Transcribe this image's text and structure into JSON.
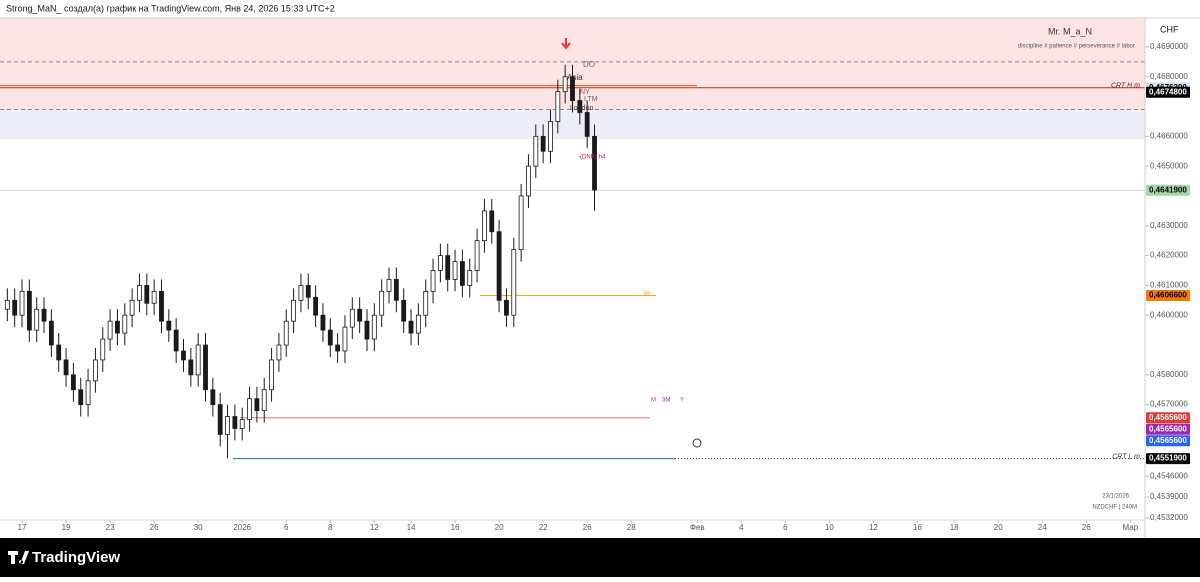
{
  "header": {
    "text": "Strong_MaN_ создал(а) график на TradingView.com, Янв 24, 2026 15:33 UTC+2"
  },
  "footer": {
    "brand": "TradingView"
  },
  "chart_data": {
    "type": "candlestick",
    "symbol_info": "NZDCHF | 240M",
    "date_stamp": "23/1/2026",
    "currency": "CHF",
    "author": "Mr. M_a_N",
    "motto": "discipline # patience # perseverance # labor",
    "annotations": [
      "DO",
      "Asia",
      "NY",
      "LTM",
      "London",
      "-(DNR) h4"
    ],
    "xlim": [
      -1,
      155
    ],
    "xticks": [
      {
        "value": 2,
        "label": "17"
      },
      {
        "value": 8,
        "label": "19"
      },
      {
        "value": 14,
        "label": "23"
      },
      {
        "value": 20,
        "label": "26"
      },
      {
        "value": 26,
        "label": "30"
      },
      {
        "value": 32,
        "label": "2026"
      },
      {
        "value": 38,
        "label": "6"
      },
      {
        "value": 44,
        "label": "8"
      },
      {
        "value": 50,
        "label": "12"
      },
      {
        "value": 55,
        "label": "14"
      },
      {
        "value": 61,
        "label": "16"
      },
      {
        "value": 67,
        "label": "20"
      },
      {
        "value": 73,
        "label": "22"
      },
      {
        "value": 79,
        "label": "26"
      },
      {
        "value": 85,
        "label": "28"
      },
      {
        "value": 94,
        "label": "Фев"
      },
      {
        "value": 100,
        "label": "4"
      },
      {
        "value": 106,
        "label": "6"
      },
      {
        "value": 112,
        "label": "10"
      },
      {
        "value": 118,
        "label": "12"
      },
      {
        "value": 124,
        "label": "16"
      },
      {
        "value": 129,
        "label": "18"
      },
      {
        "value": 135,
        "label": "20"
      },
      {
        "value": 141,
        "label": "24"
      },
      {
        "value": 147,
        "label": "26"
      },
      {
        "value": 153,
        "label": "Мар"
      }
    ],
    "ylim": [
      0.45313,
      0.46997
    ],
    "yticks": [
      {
        "value": 0.469,
        "label": "0,4690000"
      },
      {
        "value": 0.468,
        "label": "0,4680000"
      },
      {
        "value": 0.466,
        "label": "0,4660000"
      },
      {
        "value": 0.465,
        "label": "0,4650000"
      },
      {
        "value": 0.463,
        "label": "0,4630000"
      },
      {
        "value": 0.462,
        "label": "0,4620000"
      },
      {
        "value": 0.461,
        "label": "0,4610000"
      },
      {
        "value": 0.46,
        "label": "0,4600000"
      },
      {
        "value": 0.458,
        "label": "0,4580000"
      },
      {
        "value": 0.457,
        "label": "0,4570000"
      },
      {
        "value": 0.4546,
        "label": "0,4546000"
      },
      {
        "value": 0.4539,
        "label": "0,4539000"
      },
      {
        "value": 0.4532,
        "label": "0,4532000"
      }
    ],
    "zones": [
      {
        "from": 0.46997,
        "to": 0.4669,
        "color": "#fde4e4"
      },
      {
        "from": 0.4669,
        "to": 0.4659,
        "color": "#eeeef9"
      }
    ],
    "levels": [
      {
        "value": 0.4685,
        "color": "#888888",
        "dashed": true
      },
      {
        "value": 0.4677,
        "color": "#e65100",
        "dashed": false
      },
      {
        "value": 0.46763,
        "color": "#c62828",
        "dashed": false,
        "label": "CRT H m"
      },
      {
        "value": 0.4669,
        "color": "#888888",
        "dashed": true
      },
      {
        "value": 0.46419,
        "color": "#c8e6c9",
        "dashed": false
      },
      {
        "value": 0.46066,
        "color": "#f5a623",
        "dashed": false,
        "label": "W"
      },
      {
        "value": 0.45656,
        "color": "#e57373",
        "dashed": false
      },
      {
        "value": 0.45519,
        "color": "#1e63b8",
        "dashed": false,
        "label": "CRT L m"
      }
    ],
    "level_tags": [
      "M",
      "3M",
      "Y"
    ],
    "price_tags": [
      {
        "value": 0.46763,
        "label": "0,4676300",
        "color": "#cfe2f7",
        "text": "#000000"
      },
      {
        "value": 0.46748,
        "label": "0,4674800",
        "color": "#000000",
        "text": "#ffffff"
      },
      {
        "value": 0.46419,
        "label": "0,4641900",
        "color": "#a5d6a7",
        "text": "#000000"
      },
      {
        "value": 0.46066,
        "label": "0,4606600",
        "color": "#f57c00",
        "text": "#000000"
      },
      {
        "value": 0.45656,
        "label": "0,4565600",
        "color": "#e53935",
        "text": "#ffffff"
      },
      {
        "value": 0.45656,
        "label": "0,4565600",
        "color": "#9c27b0",
        "text": "#ffffff"
      },
      {
        "value": 0.45656,
        "label": "0,4565600",
        "color": "#2962ff",
        "text": "#ffffff"
      },
      {
        "value": 0.45519,
        "label": "0,4551900",
        "color": "#000000",
        "text": "#ffffff"
      }
    ],
    "up_color": "#ffffff",
    "down_color": "#1a1a1a",
    "wick_color": "#1a1a1a",
    "open": [
      0.4602,
      0.4605,
      0.46,
      0.4608,
      0.4595,
      0.4602,
      0.4598,
      0.459,
      0.4585,
      0.458,
      0.4575,
      0.457,
      0.4578,
      0.4585,
      0.4592,
      0.4598,
      0.4594,
      0.46,
      0.4605,
      0.461,
      0.4604,
      0.4608,
      0.4598,
      0.4595,
      0.4588,
      0.4585,
      0.458,
      0.459,
      0.4575,
      0.457,
      0.456,
      0.4566,
      0.4562,
      0.4565,
      0.4572,
      0.4568,
      0.4575,
      0.4585,
      0.459,
      0.4598,
      0.4605,
      0.461,
      0.4606,
      0.46,
      0.4595,
      0.459,
      0.4588,
      0.4596,
      0.4602,
      0.4598,
      0.4592,
      0.46,
      0.4608,
      0.4612,
      0.4605,
      0.4598,
      0.4594,
      0.46,
      0.4608,
      0.4615,
      0.462,
      0.4612,
      0.4618,
      0.461,
      0.4615,
      0.4625,
      0.4635,
      0.4628,
      0.4605,
      0.46,
      0.4622,
      0.464,
      0.465,
      0.466,
      0.4655,
      0.4665,
      0.4675,
      0.468,
      0.4672,
      0.4668,
      0.466
    ],
    "high": [
      0.4609,
      0.4609,
      0.4612,
      0.4612,
      0.4606,
      0.4606,
      0.4602,
      0.4594,
      0.4589,
      0.4584,
      0.4579,
      0.4582,
      0.4589,
      0.4596,
      0.4602,
      0.4602,
      0.4604,
      0.4609,
      0.4614,
      0.4614,
      0.4612,
      0.4612,
      0.4602,
      0.4599,
      0.4592,
      0.4589,
      0.4594,
      0.4594,
      0.4579,
      0.4574,
      0.457,
      0.457,
      0.4569,
      0.4576,
      0.4576,
      0.4579,
      0.4589,
      0.4594,
      0.4602,
      0.4609,
      0.4614,
      0.4614,
      0.461,
      0.4604,
      0.4599,
      0.4594,
      0.46,
      0.4606,
      0.4606,
      0.4602,
      0.4604,
      0.4612,
      0.4616,
      0.4616,
      0.4609,
      0.4602,
      0.4604,
      0.4612,
      0.4619,
      0.4624,
      0.4624,
      0.4622,
      0.4622,
      0.4619,
      0.4629,
      0.4639,
      0.4639,
      0.4632,
      0.4609,
      0.4626,
      0.4644,
      0.4654,
      0.4664,
      0.4664,
      0.4669,
      0.4679,
      0.4684,
      0.4684,
      0.4676,
      0.4672,
      0.4664
    ],
    "low": [
      0.4598,
      0.4596,
      0.4596,
      0.4591,
      0.4591,
      0.4594,
      0.4586,
      0.4581,
      0.4576,
      0.4571,
      0.4566,
      0.4566,
      0.4574,
      0.4581,
      0.4588,
      0.459,
      0.459,
      0.4596,
      0.4601,
      0.46,
      0.46,
      0.4594,
      0.4591,
      0.4584,
      0.4581,
      0.4576,
      0.4576,
      0.4571,
      0.4566,
      0.4556,
      0.4552,
      0.4558,
      0.4558,
      0.4561,
      0.4564,
      0.4564,
      0.4571,
      0.4581,
      0.4586,
      0.4594,
      0.4601,
      0.4602,
      0.4596,
      0.4591,
      0.4586,
      0.4584,
      0.4584,
      0.4592,
      0.4594,
      0.4588,
      0.4588,
      0.4596,
      0.4604,
      0.4601,
      0.4594,
      0.459,
      0.459,
      0.4596,
      0.4604,
      0.4611,
      0.4608,
      0.4608,
      0.4606,
      0.4606,
      0.4611,
      0.4621,
      0.4624,
      0.4601,
      0.4596,
      0.4596,
      0.4618,
      0.4636,
      0.4646,
      0.4651,
      0.4651,
      0.4661,
      0.4671,
      0.4668,
      0.4664,
      0.4656,
      0.4635
    ],
    "close": [
      0.4605,
      0.46,
      0.4608,
      0.4595,
      0.4602,
      0.4598,
      0.459,
      0.4585,
      0.458,
      0.4575,
      0.457,
      0.4578,
      0.4585,
      0.4592,
      0.4598,
      0.4594,
      0.46,
      0.4605,
      0.461,
      0.4604,
      0.4608,
      0.4598,
      0.4595,
      0.4588,
      0.4585,
      0.458,
      0.459,
      0.4575,
      0.457,
      0.456,
      0.4566,
      0.4562,
      0.4565,
      0.4572,
      0.4568,
      0.4575,
      0.4585,
      0.459,
      0.4598,
      0.4605,
      0.461,
      0.4606,
      0.46,
      0.4595,
      0.459,
      0.4588,
      0.4596,
      0.4602,
      0.4598,
      0.4592,
      0.46,
      0.4608,
      0.4612,
      0.4605,
      0.4598,
      0.4594,
      0.46,
      0.4608,
      0.4615,
      0.462,
      0.4612,
      0.4618,
      0.461,
      0.4615,
      0.4625,
      0.4635,
      0.4628,
      0.4605,
      0.46,
      0.4622,
      0.464,
      0.465,
      0.466,
      0.4655,
      0.4665,
      0.4675,
      0.468,
      0.4672,
      0.4668,
      0.466,
      0.4642
    ]
  }
}
